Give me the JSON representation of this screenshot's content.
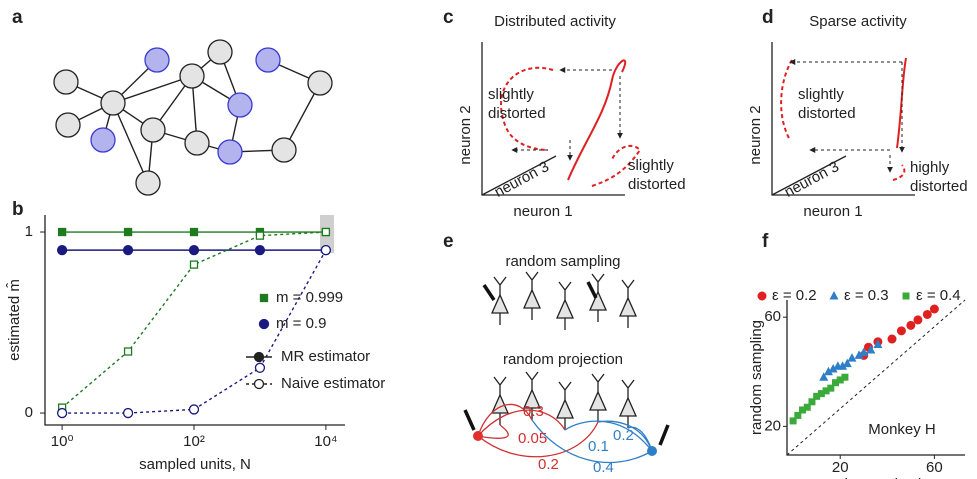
{
  "panel_labels": [
    "a",
    "b",
    "c",
    "d",
    "e",
    "f"
  ],
  "chart_data": [
    {
      "type": "line",
      "xlabel": "sampled units, N",
      "ylabel": "estimated m̂",
      "log_x": true,
      "xlim": [
        0.55,
        19500
      ],
      "ylim": [
        -0.066,
        1.094
      ],
      "xticks": [
        {
          "value": 1,
          "label": "10⁰"
        },
        {
          "value": 100,
          "label": "10²"
        },
        {
          "value": 10000,
          "label": "10⁴"
        }
      ],
      "yticks": [
        0,
        1
      ],
      "x": [
        1,
        10,
        100,
        1000,
        10000
      ],
      "legend_colors": [
        {
          "name": "m = 0.999",
          "color": "#1e7a1e",
          "marker": "square"
        },
        {
          "name": "m = 0.9",
          "color": "#1a1a80",
          "marker": "circle"
        }
      ],
      "legend_styles": [
        {
          "name": "MR estimator",
          "line": "solid",
          "filled": true
        },
        {
          "name": "Naive estimator",
          "line": "dashed",
          "filled": false
        }
      ],
      "series": [
        {
          "color": "#1e7a1e",
          "marker": "square",
          "filled": true,
          "line": "solid",
          "values": [
            1,
            1,
            1,
            1,
            1
          ]
        },
        {
          "color": "#1a1a80",
          "marker": "circle",
          "filled": true,
          "line": "solid",
          "values": [
            0.9,
            0.9,
            0.9,
            0.9,
            0.9
          ]
        },
        {
          "color": "#1e7a1e",
          "marker": "square",
          "filled": false,
          "line": "dashed",
          "values": [
            0.03,
            0.34,
            0.82,
            0.98,
            1.0
          ]
        },
        {
          "color": "#1a1a80",
          "marker": "circle",
          "filled": false,
          "line": "dashed",
          "values": [
            0,
            0,
            0.02,
            0.25,
            0.9
          ]
        }
      ]
    },
    {
      "type": "scatter",
      "xlabel": "random projection",
      "ylabel": "random sampling",
      "annotation": "Monkey H",
      "xlim": [
        -2.6,
        73
      ],
      "ylim": [
        9.5,
        66.3
      ],
      "xticks": [
        20,
        60
      ],
      "yticks": [
        20,
        60
      ],
      "series": [
        {
          "name": "ε = 0.2",
          "color": "#e02020",
          "marker": "circle",
          "x": [
            30,
            32,
            36,
            42,
            46,
            50,
            53,
            57,
            60
          ],
          "values": [
            46,
            49,
            51,
            52,
            55,
            57,
            59,
            61,
            63
          ]
        },
        {
          "name": "ε = 0.3",
          "color": "#2f7fc8",
          "marker": "triangle",
          "x": [
            13,
            15,
            17,
            19,
            21,
            23,
            25,
            28,
            30,
            33,
            36
          ],
          "values": [
            38,
            40,
            41,
            42,
            42,
            43,
            45,
            46,
            47,
            48,
            50
          ]
        },
        {
          "name": "ε = 0.4",
          "color": "#3aaa3a",
          "marker": "square",
          "x": [
            0,
            2,
            4,
            6,
            8,
            10,
            12,
            14,
            16,
            18,
            20,
            22
          ],
          "values": [
            22,
            24,
            26,
            27,
            29,
            31,
            32,
            33,
            34,
            36,
            37,
            38
          ]
        }
      ]
    }
  ],
  "panel_c": {
    "title": "Distributed activity",
    "axes": [
      "neuron 1",
      "neuron 2",
      "neuron 3"
    ],
    "annotations": [
      [
        "slightly",
        "distorted"
      ],
      [
        "slightly",
        "distorted"
      ]
    ]
  },
  "panel_d": {
    "title": "Sparse activity",
    "axes": [
      "neuron 1",
      "neuron 2",
      "neuron 3"
    ],
    "annotations": [
      [
        "slightly",
        "distorted"
      ],
      [
        "highly",
        "distorted"
      ]
    ]
  },
  "panel_e": {
    "headings": [
      "random sampling",
      "random projection"
    ],
    "weights_red": [
      "0.3",
      "0.05",
      "0.2"
    ],
    "weights_blue": [
      "0.1",
      "0.2",
      "0.4"
    ]
  }
}
